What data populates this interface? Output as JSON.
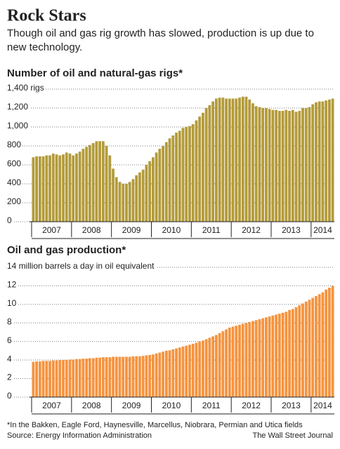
{
  "header": {
    "title": "Rock Stars",
    "subtitle": "Though oil and gas rig growth has slowed, production is up due to new technology."
  },
  "chart_data": [
    {
      "type": "bar",
      "title": "Number of oil and natural-gas rigs*",
      "color": "#b39b3b",
      "categories": [
        "2007",
        null,
        null,
        null,
        null,
        null,
        null,
        null,
        null,
        null,
        null,
        null,
        "2008",
        null,
        null,
        null,
        null,
        null,
        null,
        null,
        null,
        null,
        null,
        null,
        "2009",
        null,
        null,
        null,
        null,
        null,
        null,
        null,
        null,
        null,
        null,
        null,
        "2010",
        null,
        null,
        null,
        null,
        null,
        null,
        null,
        null,
        null,
        null,
        null,
        "2011",
        null,
        null,
        null,
        null,
        null,
        null,
        null,
        null,
        null,
        null,
        null,
        "2012",
        null,
        null,
        null,
        null,
        null,
        null,
        null,
        null,
        null,
        null,
        null,
        "2013",
        null,
        null,
        null,
        null,
        null,
        null,
        null,
        null,
        null,
        null,
        null,
        "2014",
        null,
        null,
        null,
        null,
        null,
        null
      ],
      "values": [
        680,
        690,
        690,
        690,
        700,
        700,
        720,
        710,
        700,
        710,
        730,
        720,
        700,
        720,
        740,
        770,
        790,
        810,
        830,
        850,
        850,
        850,
        800,
        700,
        560,
        470,
        420,
        400,
        400,
        420,
        450,
        490,
        520,
        550,
        600,
        640,
        680,
        730,
        770,
        800,
        840,
        880,
        910,
        940,
        960,
        990,
        1000,
        1010,
        1030,
        1070,
        1110,
        1150,
        1200,
        1230,
        1270,
        1300,
        1310,
        1310,
        1300,
        1300,
        1300,
        1300,
        1310,
        1320,
        1320,
        1290,
        1250,
        1220,
        1210,
        1200,
        1200,
        1190,
        1180,
        1180,
        1170,
        1170,
        1180,
        1170,
        1180,
        1160,
        1170,
        1200,
        1200,
        1210,
        1240,
        1260,
        1270,
        1270,
        1280,
        1290,
        1300
      ],
      "ylim": [
        0,
        1400
      ],
      "yticks": [
        0,
        200,
        400,
        600,
        800,
        {
          "value": 1000,
          "label": "1,000"
        },
        {
          "value": 1200,
          "label": "1,200"
        },
        {
          "value": 1400,
          "label": "1,400 rigs"
        }
      ],
      "grid": true
    },
    {
      "type": "bar",
      "title": "Oil and gas production*",
      "color": "#f59440",
      "categories": [
        "2007",
        null,
        null,
        null,
        null,
        null,
        null,
        null,
        null,
        null,
        null,
        null,
        "2008",
        null,
        null,
        null,
        null,
        null,
        null,
        null,
        null,
        null,
        null,
        null,
        "2009",
        null,
        null,
        null,
        null,
        null,
        null,
        null,
        null,
        null,
        null,
        null,
        "2010",
        null,
        null,
        null,
        null,
        null,
        null,
        null,
        null,
        null,
        null,
        null,
        "2011",
        null,
        null,
        null,
        null,
        null,
        null,
        null,
        null,
        null,
        null,
        null,
        "2012",
        null,
        null,
        null,
        null,
        null,
        null,
        null,
        null,
        null,
        null,
        null,
        "2013",
        null,
        null,
        null,
        null,
        null,
        null,
        null,
        null,
        null,
        null,
        null,
        "2014",
        null,
        null,
        null,
        null,
        null,
        null
      ],
      "values": [
        3.8,
        3.85,
        3.85,
        3.9,
        3.9,
        3.9,
        3.95,
        3.95,
        4.0,
        4.0,
        4.0,
        4.05,
        4.05,
        4.1,
        4.1,
        4.15,
        4.15,
        4.2,
        4.2,
        4.25,
        4.25,
        4.3,
        4.3,
        4.3,
        4.35,
        4.35,
        4.35,
        4.35,
        4.35,
        4.35,
        4.4,
        4.4,
        4.4,
        4.45,
        4.5,
        4.55,
        4.6,
        4.7,
        4.8,
        4.9,
        5.0,
        5.05,
        5.15,
        5.25,
        5.35,
        5.45,
        5.55,
        5.65,
        5.75,
        5.85,
        6.0,
        6.1,
        6.25,
        6.4,
        6.55,
        6.7,
        6.9,
        7.1,
        7.3,
        7.5,
        7.6,
        7.7,
        7.8,
        7.9,
        8.0,
        8.1,
        8.2,
        8.3,
        8.4,
        8.5,
        8.6,
        8.7,
        8.8,
        8.9,
        9.0,
        9.1,
        9.2,
        9.4,
        9.5,
        9.7,
        9.9,
        10.1,
        10.3,
        10.5,
        10.7,
        10.9,
        11.1,
        11.3,
        11.6,
        11.8,
        12.0
      ],
      "ylim": [
        0,
        14
      ],
      "yticks": [
        0,
        2,
        4,
        6,
        8,
        10,
        12,
        {
          "value": 14,
          "label": "14 million barrels a day in oil equivalent"
        }
      ],
      "grid": true
    }
  ],
  "footer": {
    "footnote": "*In the Bakken, Eagle Ford, Haynesville, Marcellus, Niobrara, Permian and Utica fields",
    "source": "Source: Energy Information Administration",
    "credit": "The Wall Street Journal"
  }
}
